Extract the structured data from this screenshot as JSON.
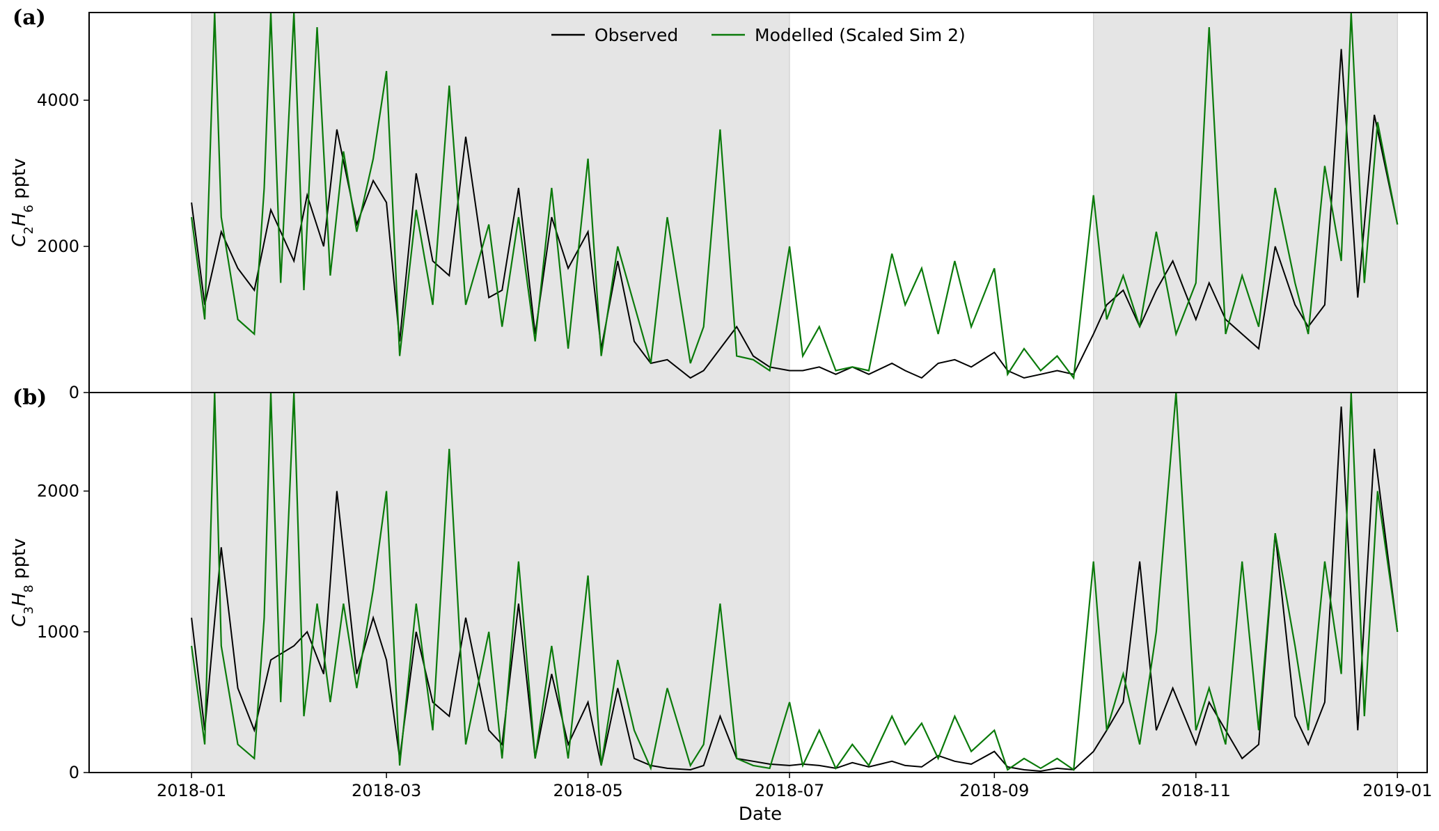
{
  "chart_data": [
    {
      "panel": "(a)",
      "type": "line",
      "ylabel": "C₂H₆ pptv",
      "ylabel_species": {
        "base": "C",
        "sub1": "2",
        "mid": "H",
        "sub2": "6",
        "unit": " pptv"
      },
      "ylim": [
        0,
        5200
      ],
      "yticks": [
        0,
        2000,
        4000
      ],
      "xlim": [
        "2017-12-01",
        "2019-01-10"
      ],
      "shaded_periods": [
        [
          "2018-01-01",
          "2018-07-01"
        ],
        [
          "2018-10-01",
          "2019-01-01"
        ]
      ],
      "legend": {
        "position": "top-center",
        "entries": [
          "Observed",
          "Modelled (Scaled Sim 2)"
        ]
      },
      "series": [
        {
          "name": "Observed",
          "color": "#000000",
          "x": [
            "2018-01-01",
            "2018-01-05",
            "2018-01-10",
            "2018-01-15",
            "2018-01-20",
            "2018-01-25",
            "2018-02-01",
            "2018-02-05",
            "2018-02-10",
            "2018-02-14",
            "2018-02-20",
            "2018-02-25",
            "2018-03-01",
            "2018-03-05",
            "2018-03-10",
            "2018-03-15",
            "2018-03-20",
            "2018-03-25",
            "2018-04-01",
            "2018-04-05",
            "2018-04-10",
            "2018-04-15",
            "2018-04-20",
            "2018-04-25",
            "2018-05-01",
            "2018-05-05",
            "2018-05-10",
            "2018-05-15",
            "2018-05-20",
            "2018-05-25",
            "2018-06-01",
            "2018-06-05",
            "2018-06-10",
            "2018-06-15",
            "2018-06-20",
            "2018-06-25",
            "2018-07-01",
            "2018-07-05",
            "2018-07-10",
            "2018-07-15",
            "2018-07-20",
            "2018-07-25",
            "2018-08-01",
            "2018-08-05",
            "2018-08-10",
            "2018-08-15",
            "2018-08-20",
            "2018-08-25",
            "2018-09-01",
            "2018-09-05",
            "2018-09-10",
            "2018-09-15",
            "2018-09-20",
            "2018-09-25",
            "2018-10-01",
            "2018-10-05",
            "2018-10-10",
            "2018-10-15",
            "2018-10-20",
            "2018-10-25",
            "2018-11-01",
            "2018-11-05",
            "2018-11-10",
            "2018-11-15",
            "2018-11-20",
            "2018-11-25",
            "2018-12-01",
            "2018-12-05",
            "2018-12-10",
            "2018-12-15",
            "2018-12-20",
            "2018-12-25",
            "2019-01-01"
          ],
          "values": [
            2600,
            1200,
            2200,
            1700,
            1400,
            2500,
            1800,
            2700,
            2000,
            3600,
            2300,
            2900,
            2600,
            700,
            3000,
            1800,
            1600,
            3500,
            1300,
            1400,
            2800,
            800,
            2400,
            1700,
            2200,
            600,
            1800,
            700,
            400,
            450,
            200,
            300,
            600,
            900,
            500,
            350,
            300,
            300,
            350,
            250,
            350,
            250,
            400,
            300,
            200,
            400,
            450,
            350,
            550,
            300,
            200,
            250,
            300,
            250,
            800,
            1200,
            1400,
            900,
            1400,
            1800,
            1000,
            1500,
            1000,
            800,
            600,
            2000,
            1200,
            900,
            1200,
            4700,
            1300,
            3800,
            2300
          ]
        },
        {
          "name": "Modelled (Scaled Sim 2)",
          "color": "#0a7a0a",
          "x": [
            "2018-01-01",
            "2018-01-05",
            "2018-01-08",
            "2018-01-10",
            "2018-01-15",
            "2018-01-20",
            "2018-01-23",
            "2018-01-25",
            "2018-01-28",
            "2018-02-01",
            "2018-02-04",
            "2018-02-08",
            "2018-02-12",
            "2018-02-16",
            "2018-02-20",
            "2018-02-25",
            "2018-03-01",
            "2018-03-05",
            "2018-03-10",
            "2018-03-15",
            "2018-03-20",
            "2018-03-25",
            "2018-04-01",
            "2018-04-05",
            "2018-04-10",
            "2018-04-15",
            "2018-04-20",
            "2018-04-25",
            "2018-05-01",
            "2018-05-05",
            "2018-05-10",
            "2018-05-15",
            "2018-05-20",
            "2018-05-25",
            "2018-06-01",
            "2018-06-05",
            "2018-06-10",
            "2018-06-15",
            "2018-06-20",
            "2018-06-25",
            "2018-07-01",
            "2018-07-05",
            "2018-07-10",
            "2018-07-15",
            "2018-07-20",
            "2018-07-25",
            "2018-08-01",
            "2018-08-05",
            "2018-08-10",
            "2018-08-15",
            "2018-08-20",
            "2018-08-25",
            "2018-09-01",
            "2018-09-05",
            "2018-09-10",
            "2018-09-15",
            "2018-09-20",
            "2018-09-25",
            "2018-10-01",
            "2018-10-05",
            "2018-10-10",
            "2018-10-15",
            "2018-10-20",
            "2018-10-26",
            "2018-11-01",
            "2018-11-05",
            "2018-11-10",
            "2018-11-15",
            "2018-11-20",
            "2018-11-25",
            "2018-12-01",
            "2018-12-05",
            "2018-12-10",
            "2018-12-15",
            "2018-12-18",
            "2018-12-22",
            "2018-12-26",
            "2019-01-01"
          ],
          "values": [
            2400,
            1000,
            5200,
            2400,
            1000,
            800,
            2800,
            5200,
            1500,
            5200,
            1400,
            5000,
            1600,
            3300,
            2200,
            3200,
            4400,
            500,
            2500,
            1200,
            4200,
            1200,
            2300,
            900,
            2400,
            700,
            2800,
            600,
            3200,
            500,
            2000,
            1200,
            400,
            2400,
            400,
            900,
            3600,
            500,
            450,
            300,
            2000,
            500,
            900,
            300,
            350,
            300,
            1900,
            1200,
            1700,
            800,
            1800,
            900,
            1700,
            250,
            600,
            300,
            500,
            200,
            2700,
            1000,
            1600,
            900,
            2200,
            800,
            1500,
            5000,
            800,
            1600,
            900,
            2800,
            1500,
            800,
            3100,
            1800,
            5200,
            1500,
            3700,
            2300
          ]
        }
      ]
    },
    {
      "panel": "(b)",
      "type": "line",
      "ylabel": "C₃H₈ pptv",
      "ylabel_species": {
        "base": "C",
        "sub1": "3",
        "mid": "H",
        "sub2": "8",
        "unit": " pptv"
      },
      "xlabel": "Date",
      "ylim": [
        0,
        2700
      ],
      "yticks": [
        0,
        1000,
        2000
      ],
      "xticks": [
        "2018-01",
        "2018-03",
        "2018-05",
        "2018-07",
        "2018-09",
        "2018-11",
        "2019-01"
      ],
      "xlim": [
        "2017-12-01",
        "2019-01-10"
      ],
      "shaded_periods": [
        [
          "2018-01-01",
          "2018-07-01"
        ],
        [
          "2018-10-01",
          "2019-01-01"
        ]
      ],
      "series": [
        {
          "name": "Observed",
          "color": "#000000",
          "x": [
            "2018-01-01",
            "2018-01-05",
            "2018-01-10",
            "2018-01-15",
            "2018-01-20",
            "2018-01-25",
            "2018-02-01",
            "2018-02-05",
            "2018-02-10",
            "2018-02-14",
            "2018-02-20",
            "2018-02-25",
            "2018-03-01",
            "2018-03-05",
            "2018-03-10",
            "2018-03-15",
            "2018-03-20",
            "2018-03-25",
            "2018-04-01",
            "2018-04-05",
            "2018-04-10",
            "2018-04-15",
            "2018-04-20",
            "2018-04-25",
            "2018-05-01",
            "2018-05-05",
            "2018-05-10",
            "2018-05-15",
            "2018-05-20",
            "2018-05-25",
            "2018-06-01",
            "2018-06-05",
            "2018-06-10",
            "2018-06-15",
            "2018-06-20",
            "2018-06-25",
            "2018-07-01",
            "2018-07-05",
            "2018-07-10",
            "2018-07-15",
            "2018-07-20",
            "2018-07-25",
            "2018-08-01",
            "2018-08-05",
            "2018-08-10",
            "2018-08-15",
            "2018-08-20",
            "2018-08-25",
            "2018-09-01",
            "2018-09-05",
            "2018-09-10",
            "2018-09-15",
            "2018-09-20",
            "2018-09-25",
            "2018-10-01",
            "2018-10-05",
            "2018-10-10",
            "2018-10-15",
            "2018-10-20",
            "2018-10-25",
            "2018-11-01",
            "2018-11-05",
            "2018-11-10",
            "2018-11-15",
            "2018-11-20",
            "2018-11-25",
            "2018-12-01",
            "2018-12-05",
            "2018-12-10",
            "2018-12-15",
            "2018-12-20",
            "2018-12-25",
            "2019-01-01"
          ],
          "values": [
            1100,
            300,
            1600,
            600,
            300,
            800,
            900,
            1000,
            700,
            2000,
            700,
            1100,
            800,
            100,
            1000,
            500,
            400,
            1100,
            300,
            200,
            1200,
            100,
            700,
            200,
            500,
            50,
            600,
            100,
            50,
            30,
            20,
            50,
            400,
            100,
            80,
            60,
            50,
            60,
            50,
            30,
            70,
            40,
            80,
            50,
            40,
            120,
            80,
            60,
            150,
            40,
            20,
            10,
            30,
            20,
            150,
            300,
            500,
            1500,
            300,
            600,
            200,
            500,
            300,
            100,
            200,
            1700,
            400,
            200,
            500,
            2600,
            300,
            2300,
            1000
          ]
        },
        {
          "name": "Modelled (Scaled Sim 2)",
          "color": "#0a7a0a",
          "x": [
            "2018-01-01",
            "2018-01-05",
            "2018-01-08",
            "2018-01-10",
            "2018-01-15",
            "2018-01-20",
            "2018-01-23",
            "2018-01-25",
            "2018-01-28",
            "2018-02-01",
            "2018-02-04",
            "2018-02-08",
            "2018-02-12",
            "2018-02-16",
            "2018-02-20",
            "2018-02-25",
            "2018-03-01",
            "2018-03-05",
            "2018-03-10",
            "2018-03-15",
            "2018-03-20",
            "2018-03-25",
            "2018-04-01",
            "2018-04-05",
            "2018-04-10",
            "2018-04-15",
            "2018-04-20",
            "2018-04-25",
            "2018-05-01",
            "2018-05-05",
            "2018-05-10",
            "2018-05-15",
            "2018-05-20",
            "2018-05-25",
            "2018-06-01",
            "2018-06-05",
            "2018-06-10",
            "2018-06-15",
            "2018-06-20",
            "2018-06-25",
            "2018-07-01",
            "2018-07-05",
            "2018-07-10",
            "2018-07-15",
            "2018-07-20",
            "2018-07-25",
            "2018-08-01",
            "2018-08-05",
            "2018-08-10",
            "2018-08-15",
            "2018-08-20",
            "2018-08-25",
            "2018-09-01",
            "2018-09-05",
            "2018-09-10",
            "2018-09-15",
            "2018-09-20",
            "2018-09-25",
            "2018-10-01",
            "2018-10-05",
            "2018-10-10",
            "2018-10-15",
            "2018-10-20",
            "2018-10-26",
            "2018-11-01",
            "2018-11-05",
            "2018-11-10",
            "2018-11-15",
            "2018-11-20",
            "2018-11-25",
            "2018-12-01",
            "2018-12-05",
            "2018-12-10",
            "2018-12-15",
            "2018-12-18",
            "2018-12-22",
            "2018-12-26",
            "2019-01-01"
          ],
          "values": [
            900,
            200,
            2700,
            900,
            200,
            100,
            1100,
            2700,
            500,
            2700,
            400,
            1200,
            500,
            1200,
            600,
            1300,
            2000,
            50,
            1200,
            300,
            2300,
            200,
            1000,
            100,
            1500,
            100,
            900,
            100,
            1400,
            50,
            800,
            300,
            30,
            600,
            50,
            200,
            1200,
            100,
            50,
            30,
            500,
            50,
            300,
            30,
            200,
            50,
            400,
            200,
            350,
            100,
            400,
            150,
            300,
            20,
            100,
            30,
            100,
            20,
            1500,
            300,
            700,
            200,
            1000,
            2700,
            300,
            600,
            200,
            1500,
            300,
            1700,
            900,
            300,
            1500,
            700,
            2700,
            400,
            2000,
            1000
          ]
        }
      ]
    }
  ]
}
